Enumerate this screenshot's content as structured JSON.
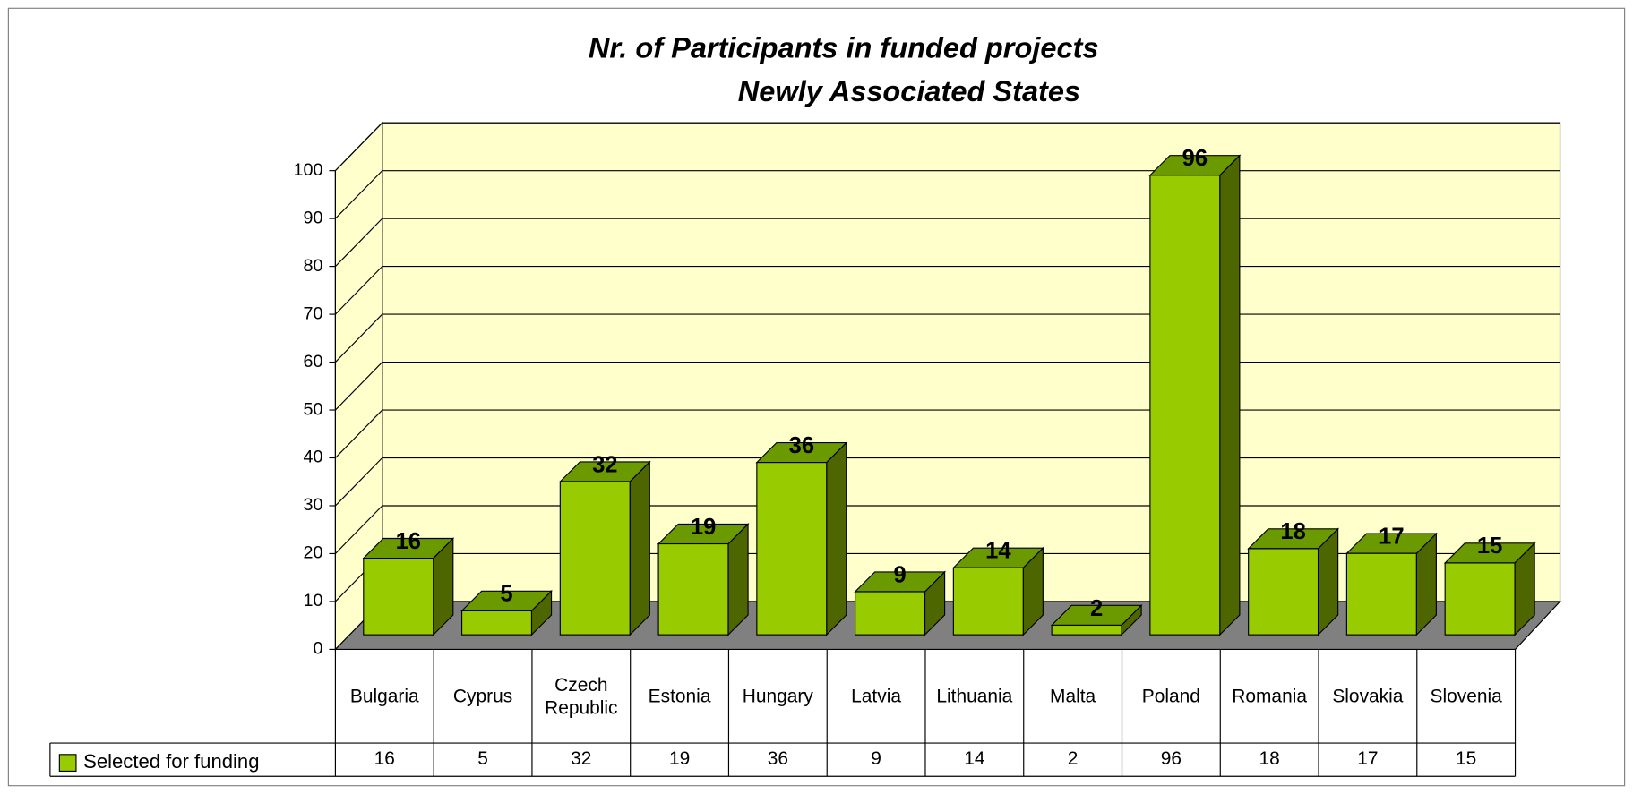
{
  "chart_data": {
    "type": "bar3d",
    "title": "Nr. of Participants in funded projects",
    "subtitle": "Newly Associated States",
    "categories": [
      "Bulgaria",
      "Cyprus",
      "Czech Republic",
      "Estonia",
      "Hungary",
      "Latvia",
      "Lithuania",
      "Malta",
      "Poland",
      "Romania",
      "Slovakia",
      "Slovenia"
    ],
    "series": [
      {
        "name": "Selected for funding",
        "color": "#99cc00",
        "values": [
          16,
          5,
          32,
          19,
          36,
          9,
          14,
          2,
          96,
          18,
          17,
          15
        ]
      }
    ],
    "ylim": [
      0,
      100
    ],
    "yticks": [
      0,
      10,
      20,
      30,
      40,
      50,
      60,
      70,
      80,
      90,
      100
    ],
    "grid": true,
    "data_table": true
  }
}
